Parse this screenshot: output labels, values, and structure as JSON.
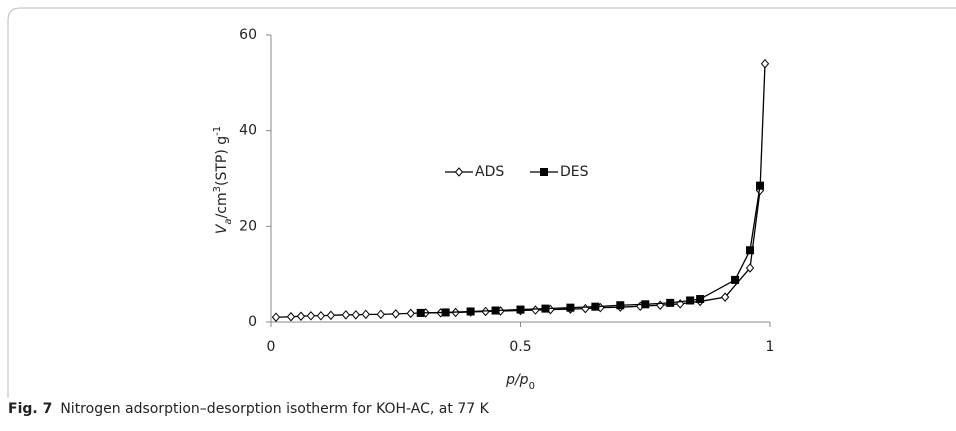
{
  "chart_data": {
    "type": "line",
    "ylabel_parts": [
      "V",
      "a",
      "/cm",
      "3",
      "(STP) g",
      "-1"
    ],
    "xlabel_parts": [
      "p/p",
      "0"
    ],
    "xlim": [
      0,
      1
    ],
    "xticks": [
      0,
      0.5,
      1
    ],
    "ylim": [
      0,
      60
    ],
    "yticks": [
      0,
      20,
      40,
      60
    ],
    "grid": false,
    "series": [
      {
        "name": "ADS",
        "color": "#000000",
        "marker": "diamond",
        "x": [
          0.01,
          0.04,
          0.06,
          0.08,
          0.1,
          0.12,
          0.15,
          0.17,
          0.19,
          0.22,
          0.25,
          0.28,
          0.31,
          0.34,
          0.37,
          0.4,
          0.43,
          0.46,
          0.5,
          0.53,
          0.56,
          0.6,
          0.63,
          0.66,
          0.7,
          0.74,
          0.78,
          0.82,
          0.86,
          0.91,
          0.96,
          0.98,
          0.99
        ],
        "values": [
          1.0,
          1.1,
          1.2,
          1.3,
          1.3,
          1.4,
          1.5,
          1.5,
          1.6,
          1.6,
          1.7,
          1.8,
          1.9,
          1.9,
          2.0,
          2.1,
          2.2,
          2.3,
          2.4,
          2.5,
          2.6,
          2.7,
          2.8,
          3.0,
          3.1,
          3.3,
          3.5,
          3.8,
          4.3,
          5.2,
          11.3,
          27.5,
          54
        ]
      },
      {
        "name": "DES",
        "color": "#000000",
        "marker": "square",
        "x": [
          0.3,
          0.35,
          0.4,
          0.45,
          0.5,
          0.55,
          0.6,
          0.65,
          0.7,
          0.75,
          0.8,
          0.84,
          0.86,
          0.93,
          0.96,
          0.98
        ],
        "values": [
          1.9,
          2.0,
          2.2,
          2.4,
          2.6,
          2.8,
          3.0,
          3.2,
          3.5,
          3.7,
          4.0,
          4.5,
          4.8,
          8.8,
          15,
          28.5
        ]
      }
    ]
  },
  "caption": {
    "label": "Fig. 7",
    "text": "Nitrogen adsorption–desorption isotherm for KOH-AC, at 77 K"
  }
}
